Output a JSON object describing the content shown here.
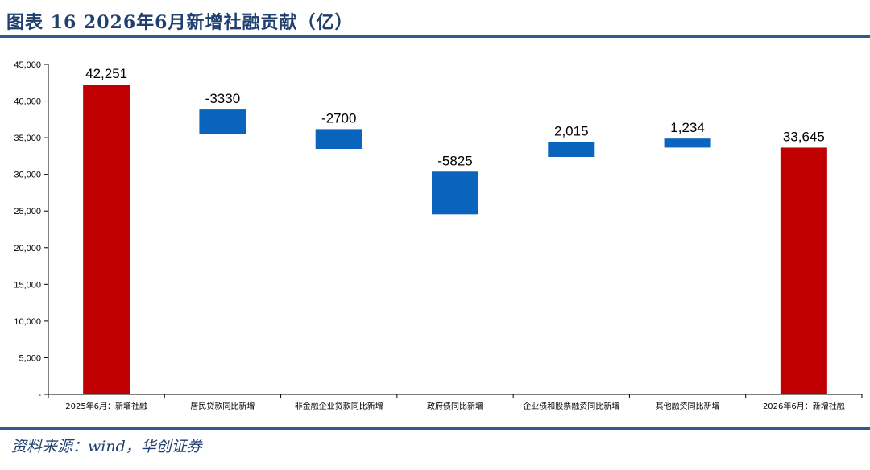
{
  "header": {
    "title": "图表 16 2026年6月新增社融贡献（亿）"
  },
  "footer": {
    "source": "资料来源：wind，华创证券"
  },
  "colors": {
    "total": "#c00000",
    "change": "#0a64be",
    "rule": "#2f5b8c",
    "title": "#1f3f6e"
  },
  "chart_data": {
    "type": "waterfall",
    "title": "",
    "xlabel": "",
    "ylabel": "",
    "ylim": [
      0,
      45000
    ],
    "yticks": [
      0,
      5000,
      10000,
      15000,
      20000,
      25000,
      30000,
      35000,
      40000,
      45000
    ],
    "ytick_labels": [
      "-",
      "5,000",
      "10,000",
      "15,000",
      "20,000",
      "25,000",
      "30,000",
      "35,000",
      "40,000",
      "45,000"
    ],
    "grid": false,
    "legend": "none",
    "categories": [
      "2025年6月：新增社融",
      "居民贷款同比新增",
      "非金融企业贷款同比新增",
      "政府债同比新增",
      "企业债和股票融资同比新增",
      "其他融资同比新增",
      "2026年6月：新增社融"
    ],
    "bars": [
      {
        "kind": "total",
        "start": 0,
        "end": 42251,
        "label": "42,251"
      },
      {
        "kind": "change",
        "start": 38843,
        "end": 35513,
        "label": "-3330"
      },
      {
        "kind": "change",
        "start": 36175,
        "end": 33475,
        "label": "-2700"
      },
      {
        "kind": "change",
        "start": 30375,
        "end": 24550,
        "label": "-5825"
      },
      {
        "kind": "change",
        "start": 32380,
        "end": 34395,
        "label": "2,015"
      },
      {
        "kind": "change",
        "start": 33650,
        "end": 34884,
        "label": "1,234"
      },
      {
        "kind": "total",
        "start": 0,
        "end": 33645,
        "label": "33,645"
      }
    ]
  }
}
